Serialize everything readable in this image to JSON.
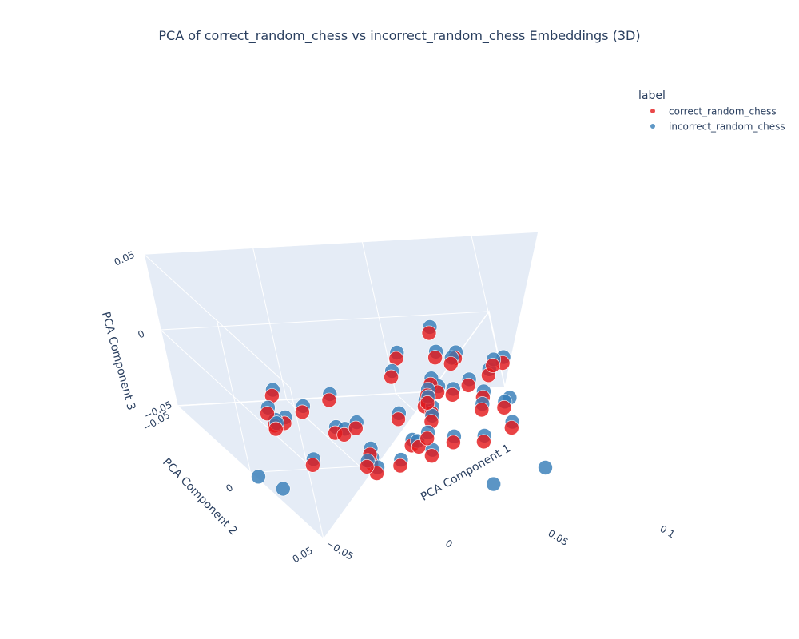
{
  "chart_data": {
    "type": "scatter3d",
    "title": "PCA of correct_random_chess vs incorrect_random_chess Embeddings (3D)",
    "axes": {
      "x": {
        "label": "PCA Component 1",
        "range": [
          -0.05,
          0.1
        ],
        "ticks": [
          {
            "value": -0.05,
            "label": "−0.05"
          },
          {
            "value": 0,
            "label": "0"
          },
          {
            "value": 0.05,
            "label": "0.05"
          },
          {
            "value": 0.1,
            "label": "0.1"
          }
        ]
      },
      "y": {
        "label": "PCA Component 2",
        "range": [
          -0.05,
          0.05
        ],
        "ticks": [
          {
            "value": -0.05,
            "label": "−0.05"
          },
          {
            "value": 0,
            "label": "0"
          },
          {
            "value": 0.05,
            "label": "0.05"
          }
        ]
      },
      "z": {
        "label": "PCA Component 3",
        "range": [
          -0.05,
          0.05
        ],
        "ticks": [
          {
            "value": -0.05,
            "label": "−0.05"
          },
          {
            "value": 0,
            "label": "0"
          },
          {
            "value": 0.05,
            "label": "0.05"
          }
        ]
      }
    },
    "legend": {
      "title": "label",
      "placement": "top-right",
      "entries": [
        "correct_random_chess",
        "incorrect_random_chess"
      ]
    },
    "series": [
      {
        "name": "correct_random_chess",
        "color": "#e41a1c",
        "points": [
          [
            0.005,
            0.045,
            0.002
          ],
          [
            0.012,
            0.041,
            -0.008
          ],
          [
            -0.018,
            0.038,
            0.01
          ],
          [
            0.02,
            0.032,
            0.006
          ],
          [
            -0.01,
            0.03,
            -0.015
          ],
          [
            0.026,
            0.022,
            0.014
          ],
          [
            -0.022,
            0.028,
            0.02
          ],
          [
            0.015,
            0.02,
            -0.02
          ],
          [
            -0.03,
            0.018,
            0.004
          ],
          [
            0.03,
            0.015,
            -0.004
          ],
          [
            0.0,
            0.042,
            0.018
          ],
          [
            -0.012,
            0.036,
            -0.022
          ],
          [
            0.018,
            0.036,
            0.022
          ],
          [
            0.035,
            0.01,
            0.01
          ],
          [
            -0.035,
            0.01,
            -0.01
          ],
          [
            0.01,
            0.025,
            0.03
          ],
          [
            -0.005,
            0.02,
            -0.03
          ],
          [
            0.04,
            0.005,
            0.0
          ],
          [
            -0.04,
            0.014,
            0.012
          ],
          [
            0.022,
            0.01,
            0.028
          ],
          [
            0.045,
            0.0,
            0.018
          ],
          [
            0.038,
            -0.005,
            -0.018
          ],
          [
            -0.045,
            0.02,
            -0.002
          ],
          [
            0.03,
            0.028,
            -0.012
          ],
          [
            -0.025,
            0.04,
            0.008
          ],
          [
            0.052,
            0.01,
            0.008
          ],
          [
            0.05,
            -0.01,
            0.025
          ],
          [
            -0.05,
            0.03,
            0.005
          ],
          [
            0.06,
            0.005,
            -0.005
          ],
          [
            -0.02,
            0.044,
            -0.01
          ],
          [
            0.008,
            0.048,
            0.01
          ],
          [
            0.048,
            0.02,
            -0.02
          ],
          [
            0.055,
            -0.002,
            0.015
          ],
          [
            -0.038,
            0.032,
            -0.018
          ],
          [
            0.042,
            0.018,
            0.03
          ],
          [
            0.065,
            0.01,
            0.02
          ],
          [
            0.07,
            -0.005,
            0.0
          ],
          [
            -0.055,
            0.035,
            0.02
          ],
          [
            0.062,
            0.02,
            -0.012
          ],
          [
            -0.032,
            0.046,
            0.015
          ],
          [
            0.028,
            0.04,
            0.03
          ],
          [
            0.045,
            0.03,
            0.01
          ],
          [
            -0.008,
            0.05,
            -0.005
          ],
          [
            0.058,
            0.025,
            0.006
          ],
          [
            0.075,
            0.0,
            0.012
          ]
        ]
      },
      {
        "name": "incorrect_random_chess",
        "color": "#377eb8",
        "points": [
          [
            0.006,
            0.043,
            0.004
          ],
          [
            0.014,
            0.039,
            -0.006
          ],
          [
            -0.016,
            0.036,
            0.012
          ],
          [
            0.022,
            0.03,
            0.008
          ],
          [
            -0.008,
            0.028,
            -0.013
          ],
          [
            0.028,
            0.02,
            0.016
          ],
          [
            -0.02,
            0.026,
            0.022
          ],
          [
            0.017,
            0.018,
            -0.018
          ],
          [
            -0.028,
            0.016,
            0.006
          ],
          [
            0.032,
            0.013,
            -0.002
          ],
          [
            0.002,
            0.04,
            0.02
          ],
          [
            -0.01,
            0.034,
            -0.02
          ],
          [
            0.02,
            0.034,
            0.024
          ],
          [
            0.037,
            0.008,
            0.012
          ],
          [
            -0.033,
            0.008,
            -0.008
          ],
          [
            0.012,
            0.023,
            0.032
          ],
          [
            -0.003,
            0.018,
            -0.028
          ],
          [
            0.042,
            0.003,
            0.002
          ],
          [
            -0.038,
            0.012,
            0.014
          ],
          [
            0.024,
            0.008,
            0.03
          ],
          [
            0.047,
            -0.002,
            0.02
          ],
          [
            0.04,
            -0.007,
            -0.016
          ],
          [
            -0.043,
            0.018,
            0.0
          ],
          [
            0.032,
            0.026,
            -0.01
          ],
          [
            -0.023,
            0.038,
            0.01
          ],
          [
            0.054,
            0.008,
            0.01
          ],
          [
            0.052,
            -0.012,
            0.027
          ],
          [
            -0.048,
            0.028,
            0.007
          ],
          [
            0.062,
            0.003,
            -0.003
          ],
          [
            -0.018,
            0.042,
            -0.008
          ],
          [
            0.01,
            0.046,
            0.012
          ],
          [
            0.05,
            0.018,
            -0.018
          ],
          [
            0.057,
            -0.004,
            0.017
          ],
          [
            -0.036,
            0.03,
            -0.016
          ],
          [
            0.044,
            0.016,
            0.032
          ],
          [
            0.067,
            0.008,
            0.022
          ],
          [
            0.072,
            -0.007,
            0.002
          ],
          [
            -0.053,
            0.033,
            0.022
          ],
          [
            0.064,
            0.018,
            -0.01
          ],
          [
            -0.03,
            0.044,
            0.017
          ],
          [
            0.03,
            0.038,
            0.032
          ],
          [
            0.047,
            0.028,
            0.012
          ],
          [
            -0.006,
            0.048,
            -0.003
          ],
          [
            0.06,
            0.023,
            0.008
          ],
          [
            0.077,
            -0.002,
            0.014
          ],
          [
            -0.058,
            0.04,
            -0.025
          ],
          [
            0.068,
            0.03,
            -0.03
          ],
          [
            0.08,
            -0.01,
            -0.02
          ],
          [
            -0.06,
            0.025,
            -0.03
          ],
          [
            0.035,
            0.045,
            -0.025
          ]
        ]
      }
    ]
  }
}
